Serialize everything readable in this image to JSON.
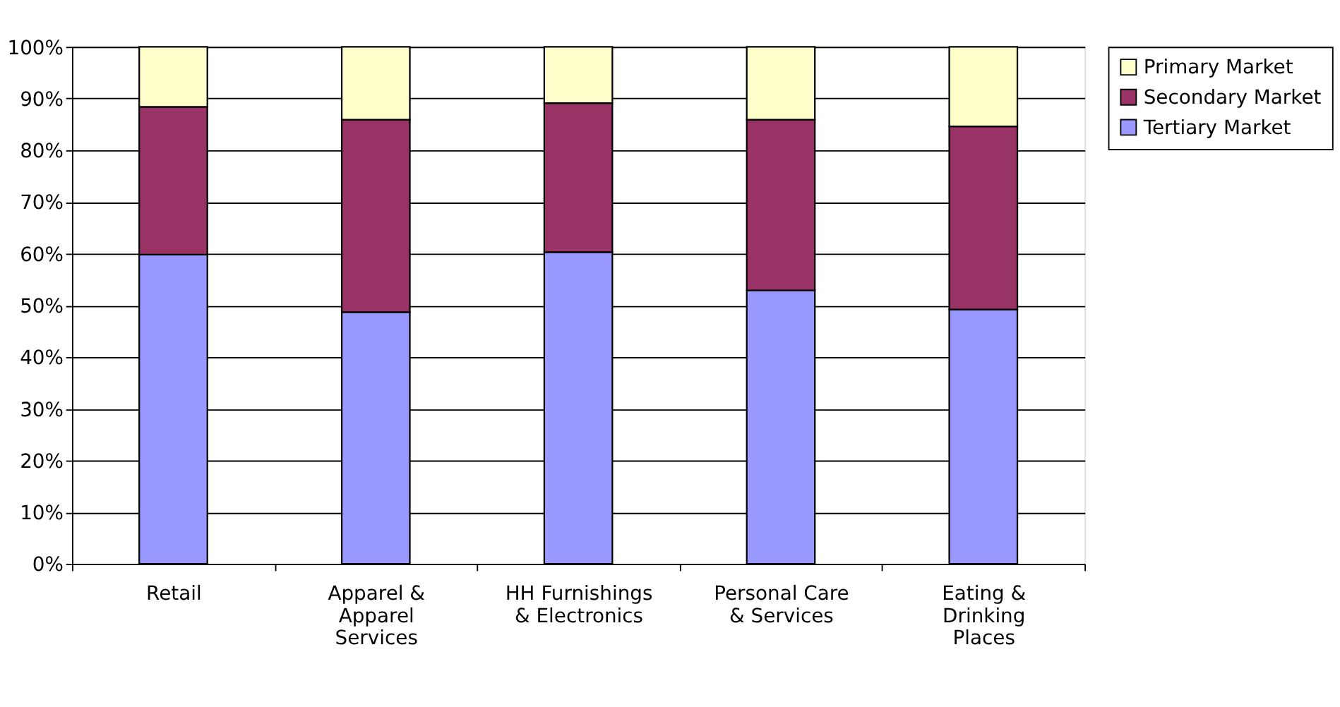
{
  "chart_data": {
    "type": "bar",
    "stacked": true,
    "categories": [
      "Retail",
      "Apparel & Apparel Services",
      "HH Furnishings & Electronics",
      "Personal Care & Services",
      "Eating & Drinking Places"
    ],
    "series": [
      {
        "name": "Tertiary Market",
        "color": "#9999ff",
        "values": [
          59.8,
          48.7,
          60.3,
          52.9,
          49.2
        ]
      },
      {
        "name": "Secondary Market",
        "color": "#993366",
        "values": [
          28.6,
          37.2,
          28.8,
          33.0,
          35.4
        ]
      },
      {
        "name": "Primary Market",
        "color": "#ffffcc",
        "values": [
          11.6,
          14.1,
          10.9,
          14.1,
          15.4
        ]
      }
    ],
    "ylim": [
      0,
      100
    ],
    "yticks": [
      {
        "value": 0,
        "label": "0%"
      },
      {
        "value": 10,
        "label": "10%"
      },
      {
        "value": 20,
        "label": "20%"
      },
      {
        "value": 30,
        "label": "30%"
      },
      {
        "value": 40,
        "label": "40%"
      },
      {
        "value": 50,
        "label": "50%"
      },
      {
        "value": 60,
        "label": "60%"
      },
      {
        "value": 70,
        "label": "70%"
      },
      {
        "value": 80,
        "label": "80%"
      },
      {
        "value": 90,
        "label": "90%"
      },
      {
        "value": 100,
        "label": "100%"
      }
    ],
    "grid": "y",
    "legend": "right"
  }
}
